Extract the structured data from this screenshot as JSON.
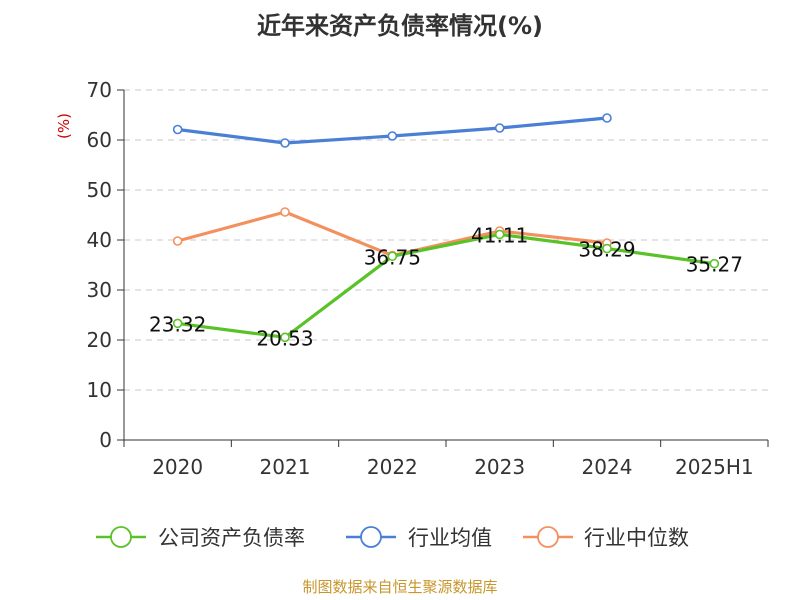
{
  "chart_data": {
    "type": "line",
    "title": "近年来资产负债率情况(%)",
    "ylabel": "(%)",
    "xlabel": "",
    "categories": [
      "2020",
      "2021",
      "2022",
      "2023",
      "2024",
      "2025H1"
    ],
    "ylim": [
      0,
      70
    ],
    "yticks": [
      0,
      10,
      20,
      30,
      40,
      50,
      60,
      70
    ],
    "grid": true,
    "legend_position": "bottom",
    "series": [
      {
        "name": "公司资产负债率",
        "color": "#5ac229",
        "values": [
          23.32,
          20.53,
          36.75,
          41.11,
          38.29,
          35.27
        ],
        "labels": [
          "23.32",
          "20.53",
          "36.75",
          "41.11",
          "38.29",
          "35.27"
        ]
      },
      {
        "name": "行业均值",
        "color": "#4a7fd6",
        "values": [
          62.1,
          59.4,
          60.8,
          62.4,
          64.4,
          null
        ]
      },
      {
        "name": "行业中位数",
        "color": "#f4905e",
        "values": [
          39.8,
          45.6,
          36.9,
          41.8,
          39.4,
          null
        ]
      }
    ]
  },
  "source": "制图数据来自恒生聚源数据库"
}
